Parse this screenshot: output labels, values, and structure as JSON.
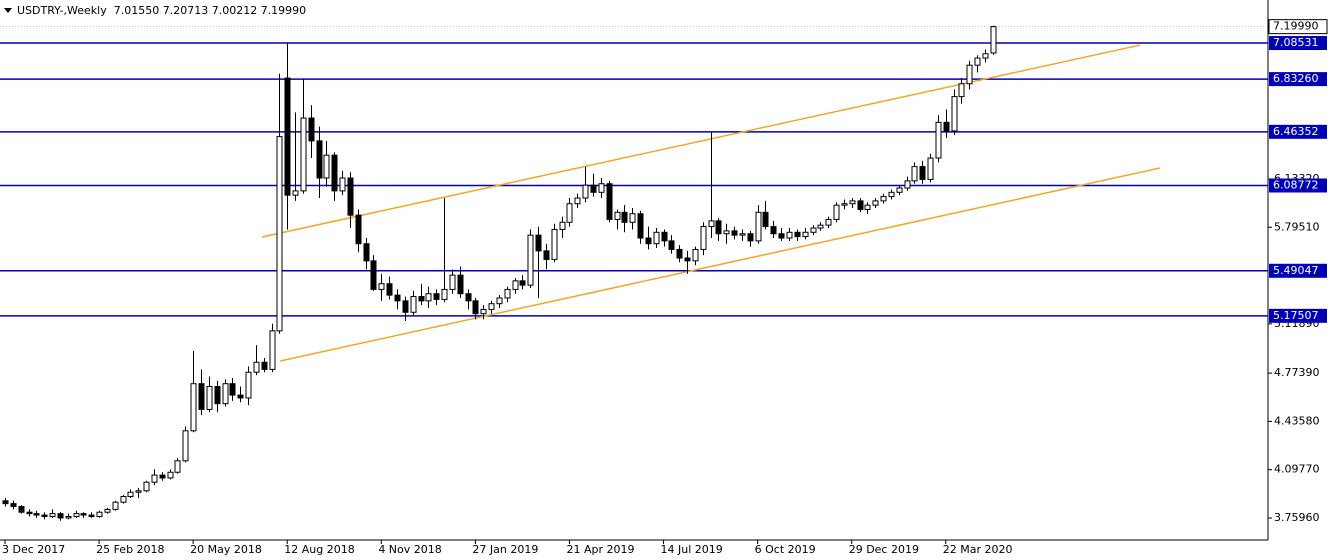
{
  "chart_data": {
    "type": "candlestick",
    "title": "USDTRY-,Weekly  7.01550 7.20713 7.00212 7.19990",
    "categories": [
      "3 Dec 2017",
      null,
      null,
      null,
      null,
      null,
      null,
      null,
      null,
      null,
      null,
      null,
      "25 Feb 2018",
      null,
      null,
      null,
      null,
      null,
      null,
      null,
      null,
      null,
      null,
      null,
      "20 May 2018",
      null,
      null,
      null,
      null,
      null,
      null,
      null,
      null,
      null,
      null,
      null,
      "12 Aug 2018",
      null,
      null,
      null,
      null,
      null,
      null,
      null,
      null,
      null,
      null,
      null,
      "4 Nov 2018",
      null,
      null,
      null,
      null,
      null,
      null,
      null,
      null,
      null,
      null,
      null,
      "27 Jan 2019",
      null,
      null,
      null,
      null,
      null,
      null,
      null,
      null,
      null,
      null,
      null,
      "21 Apr 2019",
      null,
      null,
      null,
      null,
      null,
      null,
      null,
      null,
      null,
      null,
      null,
      "14 Jul 2019",
      null,
      null,
      null,
      null,
      null,
      null,
      null,
      null,
      null,
      null,
      null,
      "6 Oct 2019",
      null,
      null,
      null,
      null,
      null,
      null,
      null,
      null,
      null,
      null,
      null,
      "29 Dec 2019",
      null,
      null,
      null,
      null,
      null,
      null,
      null,
      null,
      null,
      null,
      null,
      "22 Mar 2020",
      null,
      null,
      null,
      null,
      null,
      null
    ],
    "candles": [
      [
        3.88,
        3.9,
        3.84,
        3.86
      ],
      [
        3.86,
        3.88,
        3.82,
        3.84
      ],
      [
        3.84,
        3.85,
        3.79,
        3.8
      ],
      [
        3.8,
        3.82,
        3.77,
        3.79
      ],
      [
        3.79,
        3.81,
        3.76,
        3.78
      ],
      [
        3.78,
        3.8,
        3.75,
        3.77
      ],
      [
        3.77,
        3.82,
        3.76,
        3.79
      ],
      [
        3.79,
        3.8,
        3.74,
        3.76
      ],
      [
        3.76,
        3.79,
        3.75,
        3.77
      ],
      [
        3.77,
        3.81,
        3.76,
        3.79
      ],
      [
        3.79,
        3.8,
        3.76,
        3.78
      ],
      [
        3.78,
        3.8,
        3.76,
        3.77
      ],
      [
        3.77,
        3.81,
        3.76,
        3.8
      ],
      [
        3.8,
        3.83,
        3.79,
        3.82
      ],
      [
        3.82,
        3.88,
        3.81,
        3.87
      ],
      [
        3.87,
        3.92,
        3.86,
        3.91
      ],
      [
        3.91,
        3.96,
        3.9,
        3.94
      ],
      [
        3.94,
        3.97,
        3.9,
        3.95
      ],
      [
        3.95,
        4.02,
        3.94,
        4.01
      ],
      [
        4.01,
        4.1,
        3.99,
        4.06
      ],
      [
        4.06,
        4.08,
        4.02,
        4.04
      ],
      [
        4.04,
        4.1,
        4.03,
        4.08
      ],
      [
        4.08,
        4.18,
        4.07,
        4.16
      ],
      [
        4.16,
        4.4,
        4.15,
        4.37
      ],
      [
        4.37,
        4.93,
        4.36,
        4.7
      ],
      [
        4.7,
        4.8,
        4.48,
        4.52
      ],
      [
        4.52,
        4.75,
        4.5,
        4.68
      ],
      [
        4.68,
        4.72,
        4.5,
        4.56
      ],
      [
        4.56,
        4.73,
        4.54,
        4.7
      ],
      [
        4.7,
        4.74,
        4.58,
        4.62
      ],
      [
        4.62,
        4.68,
        4.57,
        4.6
      ],
      [
        4.6,
        4.82,
        4.55,
        4.78
      ],
      [
        4.78,
        4.97,
        4.76,
        4.85
      ],
      [
        4.85,
        4.88,
        4.78,
        4.8
      ],
      [
        4.8,
        5.12,
        4.78,
        5.07
      ],
      [
        5.07,
        6.87,
        5.05,
        6.43
      ],
      [
        6.84,
        7.09,
        5.78,
        6.02
      ],
      [
        6.02,
        6.6,
        5.98,
        6.05
      ],
      [
        6.05,
        6.83,
        6.03,
        6.56
      ],
      [
        6.56,
        6.65,
        6.28,
        6.4
      ],
      [
        6.4,
        6.5,
        6.0,
        6.14
      ],
      [
        6.14,
        6.4,
        6.08,
        6.3
      ],
      [
        6.3,
        6.32,
        5.98,
        6.05
      ],
      [
        6.05,
        6.19,
        6.02,
        6.14
      ],
      [
        6.14,
        6.18,
        5.79,
        5.88
      ],
      [
        5.88,
        5.92,
        5.62,
        5.68
      ],
      [
        5.68,
        5.72,
        5.5,
        5.56
      ],
      [
        5.56,
        5.6,
        5.35,
        5.36
      ],
      [
        5.36,
        5.47,
        5.28,
        5.4
      ],
      [
        5.4,
        5.45,
        5.29,
        5.32
      ],
      [
        5.32,
        5.36,
        5.22,
        5.28
      ],
      [
        5.28,
        5.31,
        5.14,
        5.2
      ],
      [
        5.2,
        5.35,
        5.18,
        5.31
      ],
      [
        5.31,
        5.4,
        5.25,
        5.28
      ],
      [
        5.28,
        5.38,
        5.23,
        5.33
      ],
      [
        5.33,
        5.36,
        5.25,
        5.29
      ],
      [
        5.29,
        6.0,
        5.27,
        5.36
      ],
      [
        5.36,
        5.5,
        5.33,
        5.46
      ],
      [
        5.46,
        5.52,
        5.3,
        5.33
      ],
      [
        5.33,
        5.36,
        5.22,
        5.28
      ],
      [
        5.28,
        5.3,
        5.15,
        5.19
      ],
      [
        5.19,
        5.25,
        5.15,
        5.22
      ],
      [
        5.22,
        5.28,
        5.19,
        5.26
      ],
      [
        5.26,
        5.32,
        5.23,
        5.3
      ],
      [
        5.3,
        5.38,
        5.27,
        5.36
      ],
      [
        5.36,
        5.44,
        5.33,
        5.42
      ],
      [
        5.42,
        5.46,
        5.36,
        5.39
      ],
      [
        5.39,
        5.78,
        5.37,
        5.74
      ],
      [
        5.74,
        5.8,
        5.3,
        5.63
      ],
      [
        5.63,
        5.68,
        5.5,
        5.57
      ],
      [
        5.57,
        5.82,
        5.55,
        5.78
      ],
      [
        5.78,
        5.87,
        5.72,
        5.83
      ],
      [
        5.83,
        6.0,
        5.8,
        5.96
      ],
      [
        5.96,
        6.03,
        5.93,
        6.0
      ],
      [
        6.0,
        6.22,
        5.97,
        6.09
      ],
      [
        6.09,
        6.17,
        6.01,
        6.04
      ],
      [
        6.04,
        6.14,
        6.0,
        6.1
      ],
      [
        6.1,
        6.12,
        5.83,
        5.85
      ],
      [
        5.85,
        5.92,
        5.78,
        5.9
      ],
      [
        5.9,
        5.95,
        5.76,
        5.83
      ],
      [
        5.83,
        5.93,
        5.78,
        5.89
      ],
      [
        5.89,
        5.91,
        5.68,
        5.72
      ],
      [
        5.72,
        5.8,
        5.64,
        5.68
      ],
      [
        5.68,
        5.79,
        5.65,
        5.76
      ],
      [
        5.76,
        5.78,
        5.66,
        5.7
      ],
      [
        5.7,
        5.74,
        5.61,
        5.64
      ],
      [
        5.64,
        5.67,
        5.55,
        5.58
      ],
      [
        5.58,
        5.63,
        5.47,
        5.56
      ],
      [
        5.56,
        5.66,
        5.53,
        5.64
      ],
      [
        5.64,
        5.83,
        5.6,
        5.8
      ],
      [
        5.8,
        6.46,
        5.72,
        5.84
      ],
      [
        5.84,
        5.86,
        5.7,
        5.75
      ],
      [
        5.75,
        5.82,
        5.68,
        5.77
      ],
      [
        5.77,
        5.8,
        5.71,
        5.74
      ],
      [
        5.74,
        5.78,
        5.7,
        5.75
      ],
      [
        5.75,
        5.77,
        5.66,
        5.7
      ],
      [
        5.7,
        5.95,
        5.68,
        5.9
      ],
      [
        5.9,
        5.98,
        5.78,
        5.8
      ],
      [
        5.8,
        5.84,
        5.72,
        5.75
      ],
      [
        5.75,
        5.79,
        5.7,
        5.72
      ],
      [
        5.72,
        5.79,
        5.7,
        5.76
      ],
      [
        5.76,
        5.78,
        5.7,
        5.73
      ],
      [
        5.73,
        5.79,
        5.71,
        5.76
      ],
      [
        5.76,
        5.81,
        5.74,
        5.79
      ],
      [
        5.79,
        5.83,
        5.77,
        5.81
      ],
      [
        5.81,
        5.87,
        5.79,
        5.85
      ],
      [
        5.85,
        5.97,
        5.83,
        5.95
      ],
      [
        5.95,
        5.99,
        5.92,
        5.96
      ],
      [
        5.96,
        6.0,
        5.93,
        5.98
      ],
      [
        5.98,
        6.0,
        5.9,
        5.92
      ],
      [
        5.92,
        5.97,
        5.89,
        5.95
      ],
      [
        5.95,
        6.0,
        5.93,
        5.98
      ],
      [
        5.98,
        6.03,
        5.96,
        6.01
      ],
      [
        6.01,
        6.06,
        5.99,
        6.04
      ],
      [
        6.04,
        6.09,
        6.02,
        6.07
      ],
      [
        6.07,
        6.15,
        6.05,
        6.12
      ],
      [
        6.12,
        6.25,
        6.1,
        6.22
      ],
      [
        6.22,
        6.26,
        6.1,
        6.13
      ],
      [
        6.13,
        6.31,
        6.11,
        6.28
      ],
      [
        6.28,
        6.58,
        6.25,
        6.53
      ],
      [
        6.53,
        6.62,
        6.42,
        6.47
      ],
      [
        6.47,
        6.76,
        6.44,
        6.71
      ],
      [
        6.71,
        6.84,
        6.66,
        6.8
      ],
      [
        6.8,
        6.96,
        6.76,
        6.93
      ],
      [
        6.93,
        7.0,
        6.88,
        6.98
      ],
      [
        6.98,
        7.04,
        6.95,
        7.01
      ],
      [
        7.0155,
        7.20713,
        7.00212,
        7.1999
      ]
    ],
    "xlim": [
      -0.638,
      161.1
    ],
    "ylim": [
      3.6055,
      7.3865
    ],
    "yticks": [
      {
        "value": 3.7596,
        "label": "3.75960"
      },
      {
        "value": 4.0977,
        "label": "4.09770"
      },
      {
        "value": 4.4358,
        "label": "4.43580"
      },
      {
        "value": 4.7739,
        "label": "4.77390"
      },
      {
        "value": 5.1189,
        "label": "5.11890"
      },
      {
        "value": 5.7951,
        "label": "5.79510"
      },
      {
        "value": 6.1332,
        "label": "6.13320"
      }
    ],
    "levels": [
      {
        "value": 7.08531,
        "label": "7.08531"
      },
      {
        "value": 6.8326,
        "label": "6.83260"
      },
      {
        "value": 6.46352,
        "label": "6.46352"
      },
      {
        "value": 6.08772,
        "label": "6.08772"
      },
      {
        "value": 5.49047,
        "label": "5.49047"
      },
      {
        "value": 5.17507,
        "label": "5.17507"
      }
    ],
    "bid": {
      "value": 7.1999,
      "label": "7.19990"
    },
    "trendlines": [
      {
        "x": [
          32.8,
          144.8
        ],
        "y": [
          5.727,
          7.071
        ]
      },
      {
        "x": [
          35.1,
          147.3
        ],
        "y": [
          4.859,
          6.21
        ]
      }
    ],
    "up_color": "#ffffff",
    "down_color": "#000000",
    "level_color": "#0000b4",
    "trend_color": "#f5a623",
    "bid_color": "#c0c0c0"
  }
}
